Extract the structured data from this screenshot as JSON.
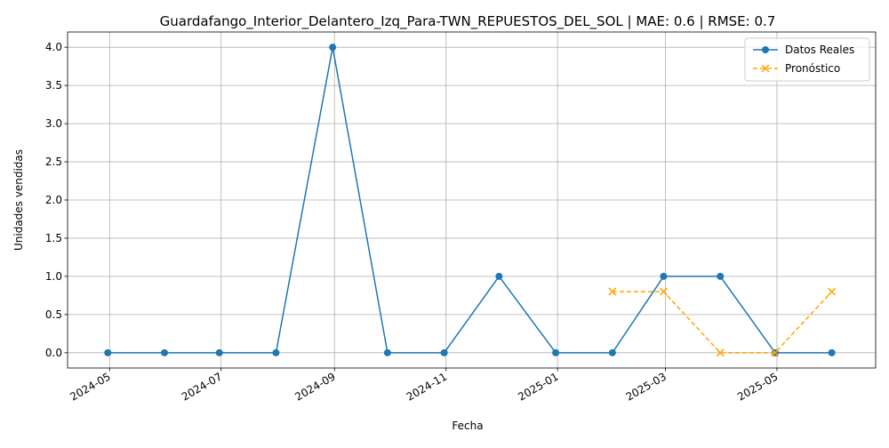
{
  "chart_data": {
    "type": "line",
    "title": "Guardafango_Interior_Delantero_Izq_Para-TWN_REPUESTOS_DEL_SOL | MAE: 0.6 | RMSE: 0.7",
    "xlabel": "Fecha",
    "ylabel": "Unidades vendidas",
    "x_ticks": [
      "2024-05",
      "2024-07",
      "2024-09",
      "2024-11",
      "2025-01",
      "2025-03",
      "2025-05"
    ],
    "y_ticks": [
      "0.0",
      "0.5",
      "1.0",
      "1.5",
      "2.0",
      "2.5",
      "3.0",
      "3.5",
      "4.0"
    ],
    "ylim": [
      -0.2,
      4.2
    ],
    "xlim": [
      "2024-04-08",
      "2025-06-24"
    ],
    "grid": true,
    "legend_position": "top-right",
    "series": [
      {
        "name": "Datos Reales",
        "color": "#1f77b4",
        "linestyle": "solid",
        "marker": "circle",
        "x": [
          "2024-04-30",
          "2024-05-31",
          "2024-06-30",
          "2024-07-31",
          "2024-08-31",
          "2024-09-30",
          "2024-10-31",
          "2024-11-30",
          "2024-12-31",
          "2025-01-31",
          "2025-02-28",
          "2025-03-31",
          "2025-04-30",
          "2025-05-31"
        ],
        "values": [
          0,
          0,
          0,
          0,
          4,
          0,
          0,
          1,
          0,
          0,
          1,
          1,
          0,
          0
        ]
      },
      {
        "name": "Pronóstico",
        "color": "#ffa500",
        "linestyle": "dashed",
        "marker": "x",
        "x": [
          "2025-01-31",
          "2025-02-28",
          "2025-03-31",
          "2025-04-30",
          "2025-05-31"
        ],
        "values": [
          0.8,
          0.8,
          0,
          0,
          0.8
        ]
      }
    ]
  }
}
